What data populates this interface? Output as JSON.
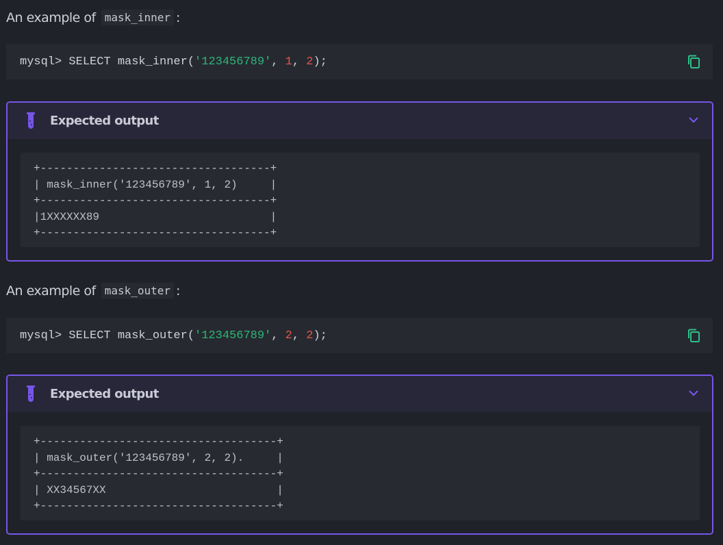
{
  "examples": [
    {
      "heading_prefix": "An example of",
      "function_name": "mask_inner",
      "heading_suffix": ":",
      "code": {
        "prompt": "mysql> SELECT mask_inner(",
        "string_arg": "'123456789'",
        "sep1": ", ",
        "arg1": "1",
        "sep2": ", ",
        "arg2": "2",
        "end": ");"
      },
      "copy_icon": "copy-icon",
      "callout": {
        "title": "Expected output",
        "icon": "flask-icon",
        "toggle_icon": "chevron-down-icon",
        "output": "+-----------------------------------+\n| mask_inner('123456789', 1, 2)     |\n+-----------------------------------+\n|1XXXXXX89                          |\n+-----------------------------------+"
      }
    },
    {
      "heading_prefix": "An example of",
      "function_name": "mask_outer",
      "heading_suffix": ":",
      "code": {
        "prompt": "mysql> SELECT mask_outer(",
        "string_arg": "'123456789'",
        "sep1": ", ",
        "arg1": "2",
        "sep2": ", ",
        "arg2": "2",
        "end": ");"
      },
      "copy_icon": "copy-icon",
      "callout": {
        "title": "Expected output",
        "icon": "flask-icon",
        "toggle_icon": "chevron-down-icon",
        "output": "+------------------------------------+\n| mask_outer('123456789', 2, 2).     |\n+------------------------------------+\n| XX34567XX                          |\n+------------------------------------+"
      }
    }
  ],
  "colors": {
    "accent": "#7656e8",
    "string": "#2fb577",
    "number": "#e5534b",
    "copy": "#2fbf8a"
  }
}
